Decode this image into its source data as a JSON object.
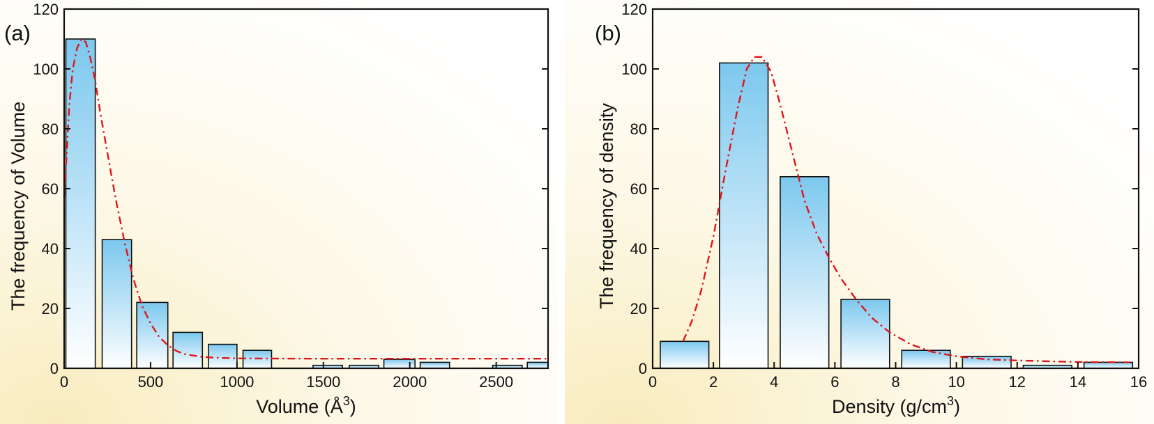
{
  "chart_data": [
    {
      "type": "bar",
      "panel_label": "(a)",
      "xlabel": "Volume (Å",
      "xlabel_sup": "3",
      "xlabel_close": ")",
      "ylabel": "The frequency of Volume",
      "xlim": [
        0,
        2800
      ],
      "ylim": [
        0,
        120
      ],
      "xticks": [
        0,
        500,
        1000,
        1500,
        2000,
        2500
      ],
      "yticks": [
        0,
        20,
        40,
        60,
        80,
        100,
        120
      ],
      "bars": [
        {
          "x0": 10,
          "x1": 180,
          "value": 110
        },
        {
          "x0": 220,
          "x1": 390,
          "value": 43
        },
        {
          "x0": 420,
          "x1": 600,
          "value": 22
        },
        {
          "x0": 630,
          "x1": 800,
          "value": 12
        },
        {
          "x0": 835,
          "x1": 1000,
          "value": 8
        },
        {
          "x0": 1035,
          "x1": 1200,
          "value": 6
        },
        {
          "x0": 1440,
          "x1": 1610,
          "value": 1
        },
        {
          "x0": 1650,
          "x1": 1820,
          "value": 1
        },
        {
          "x0": 1850,
          "x1": 2030,
          "value": 3
        },
        {
          "x0": 2060,
          "x1": 2230,
          "value": 2
        },
        {
          "x0": 2480,
          "x1": 2650,
          "value": 1
        },
        {
          "x0": 2680,
          "x1": 2850,
          "value": 2
        }
      ],
      "fit_curve": [
        [
          0,
          57
        ],
        [
          15,
          72
        ],
        [
          30,
          88
        ],
        [
          50,
          100
        ],
        [
          75,
          107
        ],
        [
          100,
          110
        ],
        [
          125,
          109
        ],
        [
          150,
          104
        ],
        [
          180,
          96
        ],
        [
          210,
          85
        ],
        [
          250,
          72
        ],
        [
          300,
          56
        ],
        [
          350,
          42
        ],
        [
          400,
          30
        ],
        [
          450,
          21
        ],
        [
          500,
          15
        ],
        [
          550,
          10.5
        ],
        [
          600,
          7.7
        ],
        [
          650,
          5.8
        ],
        [
          700,
          4.7
        ],
        [
          800,
          3.8
        ],
        [
          900,
          3.5
        ],
        [
          1000,
          3.3
        ],
        [
          1500,
          3.2
        ],
        [
          2000,
          3.2
        ],
        [
          2800,
          3.2
        ]
      ]
    },
    {
      "type": "bar",
      "panel_label": "(b)",
      "xlabel": "Density (g/cm",
      "xlabel_sup": "3",
      "xlabel_close": ")",
      "ylabel": "The frequency of density",
      "xlim": [
        0,
        16
      ],
      "ylim": [
        0,
        120
      ],
      "xticks": [
        0,
        2,
        4,
        6,
        8,
        10,
        12,
        14,
        16
      ],
      "yticks": [
        0,
        20,
        40,
        60,
        80,
        100,
        120
      ],
      "bars": [
        {
          "x0": 0.25,
          "x1": 1.85,
          "value": 9
        },
        {
          "x0": 2.2,
          "x1": 3.8,
          "value": 102
        },
        {
          "x0": 4.2,
          "x1": 5.8,
          "value": 64
        },
        {
          "x0": 6.2,
          "x1": 7.8,
          "value": 23
        },
        {
          "x0": 8.2,
          "x1": 9.8,
          "value": 6
        },
        {
          "x0": 10.2,
          "x1": 11.8,
          "value": 4
        },
        {
          "x0": 12.2,
          "x1": 13.8,
          "value": 1
        },
        {
          "x0": 14.2,
          "x1": 15.8,
          "value": 2
        }
      ],
      "fit_curve": [
        [
          1.0,
          9
        ],
        [
          1.3,
          16
        ],
        [
          1.6,
          26
        ],
        [
          2.0,
          44
        ],
        [
          2.4,
          66
        ],
        [
          2.8,
          87
        ],
        [
          3.1,
          100
        ],
        [
          3.35,
          104
        ],
        [
          3.6,
          104
        ],
        [
          3.9,
          99
        ],
        [
          4.2,
          88
        ],
        [
          4.6,
          72
        ],
        [
          5.0,
          56
        ],
        [
          5.4,
          45
        ],
        [
          5.8,
          37
        ],
        [
          6.2,
          30
        ],
        [
          6.7,
          23
        ],
        [
          7.2,
          17
        ],
        [
          7.8,
          12
        ],
        [
          8.5,
          8
        ],
        [
          9.2,
          5.5
        ],
        [
          10.0,
          4
        ],
        [
          11.0,
          3
        ],
        [
          12.0,
          2.6
        ],
        [
          14.0,
          2.1
        ],
        [
          15.7,
          2
        ]
      ]
    }
  ]
}
